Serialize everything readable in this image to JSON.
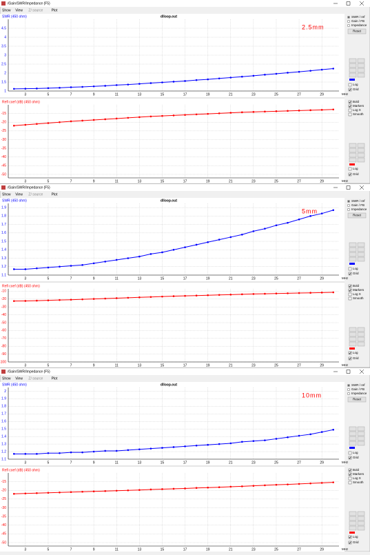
{
  "x_axis": {
    "x": [
      2,
      3,
      4,
      5,
      6,
      7,
      8,
      9,
      10,
      11,
      12,
      13,
      14,
      15,
      16,
      17,
      18,
      19,
      20,
      21,
      22,
      23,
      24,
      25,
      26,
      27,
      28,
      29,
      30
    ],
    "xlim": [
      1.5,
      30.5
    ],
    "xticks": [
      3,
      5,
      7,
      9,
      11,
      13,
      15,
      17,
      19,
      21,
      23,
      25,
      27,
      29
    ],
    "unit": "MHz"
  },
  "windows": [
    {
      "title": "/Gain/SWR/Impedance (F5)",
      "menu": [
        "Show",
        "View",
        "Z/ source",
        "Plot"
      ],
      "plot_title": "dlloop.out",
      "note": "2.5mm",
      "swr": {
        "label": "SWR (450 ohm)",
        "color": "#0000ff",
        "ylim": [
          1,
          5
        ],
        "yticks": [
          1,
          1.5,
          2,
          2.5,
          3,
          3.5,
          4,
          4.5
        ],
        "values": [
          1.12,
          1.13,
          1.14,
          1.16,
          1.18,
          1.21,
          1.23,
          1.26,
          1.29,
          1.33,
          1.36,
          1.4,
          1.44,
          1.48,
          1.52,
          1.56,
          1.61,
          1.65,
          1.7,
          1.75,
          1.8,
          1.85,
          1.91,
          1.96,
          2.02,
          2.07,
          2.13,
          2.19,
          2.25
        ]
      },
      "refl": {
        "label": "Refl coef (dB) (450 ohm)",
        "color": "#ff0000",
        "ylim": [
          -52,
          -10
        ],
        "yticks": [
          -15,
          -20,
          -25,
          -30,
          -35,
          -40,
          -45,
          -50
        ],
        "values": [
          -22,
          -21.5,
          -21,
          -20.5,
          -20,
          -19.5,
          -19.1,
          -18.7,
          -18.3,
          -17.9,
          -17.5,
          -17.1,
          -16.7,
          -16.4,
          -16.1,
          -15.8,
          -15.5,
          -15.2,
          -14.9,
          -14.6,
          -14.3,
          -14.1,
          -13.9,
          -13.7,
          -13.5,
          -13.3,
          -13.1,
          -12.9,
          -12.7
        ]
      },
      "modes": [
        "SWR / ref",
        "Gain / FB",
        "Impedance"
      ],
      "mode_selected": 0,
      "reset": "Reset",
      "swr_checks": [
        {
          "label": "Log",
          "checked": false
        },
        {
          "label": "Grid",
          "checked": true
        }
      ],
      "refl_options": [
        {
          "label": "Bold",
          "checked": true
        },
        {
          "label": "Markers",
          "checked": true
        },
        {
          "label": "Log X",
          "checked": false
        },
        {
          "label": "Smooth",
          "checked": false
        }
      ],
      "refl_checks": [
        {
          "label": "Log",
          "checked": false
        },
        {
          "label": "Grid",
          "checked": true
        }
      ]
    },
    {
      "title": "/Gain/SWR/Impedance (F5)",
      "menu": [
        "Show",
        "View",
        "Z/ source",
        "Plot"
      ],
      "plot_title": "dlloop.out",
      "note": "5mm",
      "swr": {
        "label": "SWR (450 ohm)",
        "color": "#0000ff",
        "ylim": [
          1.1,
          1.95
        ],
        "yticks": [
          1.1,
          1.2,
          1.3,
          1.4,
          1.5,
          1.6,
          1.7,
          1.8,
          1.9
        ],
        "values": [
          1.17,
          1.17,
          1.18,
          1.19,
          1.2,
          1.21,
          1.22,
          1.24,
          1.26,
          1.28,
          1.3,
          1.32,
          1.35,
          1.37,
          1.4,
          1.43,
          1.46,
          1.49,
          1.52,
          1.55,
          1.58,
          1.62,
          1.65,
          1.69,
          1.72,
          1.76,
          1.8,
          1.83,
          1.87
        ]
      },
      "refl": {
        "label": "Refl coef (dB) (450 ohm)",
        "color": "#ff0000",
        "ylim": [
          -100,
          -7
        ],
        "yticks": [
          -10,
          -20,
          -30,
          -40,
          -50,
          -60,
          -70,
          -80,
          -90,
          -100
        ],
        "values": [
          -22.5,
          -22.3,
          -22,
          -21.6,
          -21.2,
          -20.8,
          -20.3,
          -19.8,
          -19.3,
          -18.8,
          -18.3,
          -17.8,
          -17.3,
          -16.8,
          -16.3,
          -15.9,
          -15.5,
          -15.1,
          -14.7,
          -14.3,
          -13.9,
          -13.5,
          -13.2,
          -12.9,
          -12.6,
          -12.3,
          -12,
          -11.7,
          -11.4
        ]
      },
      "modes": [
        "SWR / ref",
        "Gain / FB",
        "Impedance"
      ],
      "mode_selected": 0,
      "reset": "Reset",
      "swr_checks": [
        {
          "label": "Log",
          "checked": false
        },
        {
          "label": "Grid",
          "checked": true
        }
      ],
      "refl_options": [
        {
          "label": "Bold",
          "checked": true
        },
        {
          "label": "Markers",
          "checked": true
        },
        {
          "label": "Log X",
          "checked": false
        },
        {
          "label": "Smooth",
          "checked": false
        }
      ],
      "refl_checks": [
        {
          "label": "Log",
          "checked": true
        },
        {
          "label": "Grid",
          "checked": true
        }
      ]
    },
    {
      "title": "/Gain/SWR/Impedance (F5)",
      "menu": [
        "Show",
        "View",
        "Z/ source",
        "Plot"
      ],
      "plot_title": "dlloop.out",
      "note": "10mm",
      "swr": {
        "label": "SWR (450 ohm)",
        "color": "#0000ff",
        "ylim": [
          1.1,
          2.05
        ],
        "yticks": [
          1.1,
          1.2,
          1.3,
          1.4,
          1.5,
          1.6,
          1.7,
          1.8,
          1.9,
          2
        ],
        "values": [
          1.17,
          1.17,
          1.17,
          1.18,
          1.18,
          1.19,
          1.19,
          1.2,
          1.21,
          1.21,
          1.22,
          1.23,
          1.24,
          1.25,
          1.26,
          1.27,
          1.28,
          1.29,
          1.3,
          1.31,
          1.33,
          1.34,
          1.35,
          1.37,
          1.39,
          1.41,
          1.43,
          1.46,
          1.49
        ]
      },
      "refl": {
        "label": "Refl coef (dB) (450 ohm)",
        "color": "#ff0000",
        "ylim": [
          -52,
          -10
        ],
        "yticks": [
          -15,
          -20,
          -25,
          -30,
          -35,
          -40,
          -45,
          -50
        ],
        "values": [
          -22,
          -21.8,
          -21.6,
          -21.4,
          -21.2,
          -21,
          -20.8,
          -20.6,
          -20.4,
          -20.2,
          -20,
          -19.8,
          -19.5,
          -19.3,
          -19.1,
          -18.9,
          -18.6,
          -18.4,
          -18.2,
          -17.9,
          -17.7,
          -17.4,
          -17.1,
          -16.8,
          -16.6,
          -16.3,
          -16,
          -15.7,
          -15.4
        ]
      },
      "modes": [
        "SWR / ref",
        "Gain / FB",
        "Impedance"
      ],
      "mode_selected": 0,
      "reset": "Reset",
      "swr_checks": [
        {
          "label": "Log",
          "checked": false
        },
        {
          "label": "Grid",
          "checked": true
        }
      ],
      "refl_options": [
        {
          "label": "Bold",
          "checked": true
        },
        {
          "label": "Markers",
          "checked": true
        },
        {
          "label": "Log X",
          "checked": false
        },
        {
          "label": "Smooth",
          "checked": false
        }
      ],
      "refl_checks": [
        {
          "label": "Log",
          "checked": true
        },
        {
          "label": "Grid",
          "checked": true
        }
      ]
    }
  ]
}
